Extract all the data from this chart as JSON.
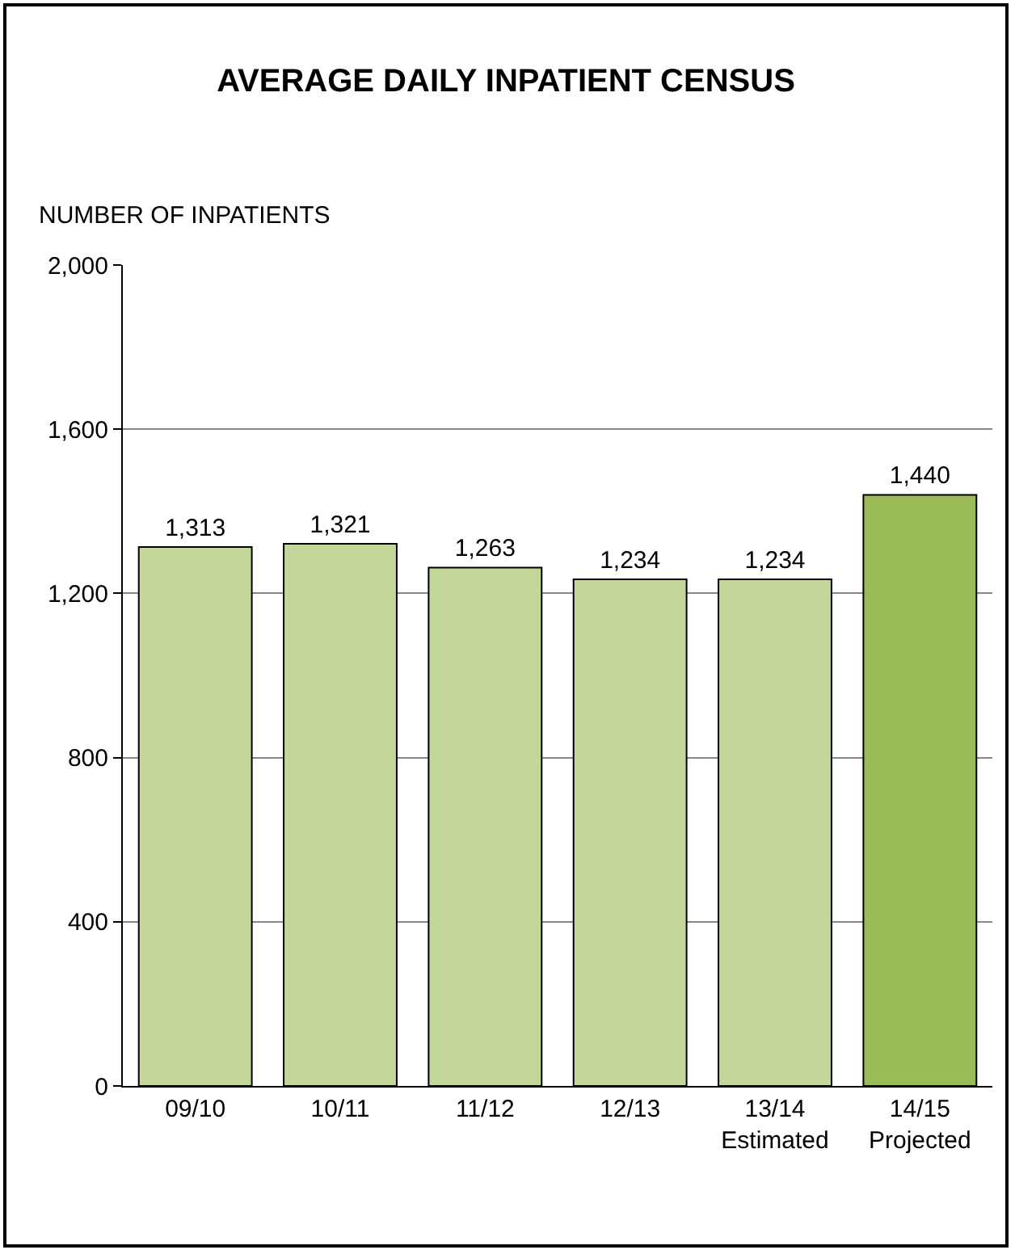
{
  "chart_data": {
    "type": "bar",
    "title": "AVERAGE DAILY INPATIENT CENSUS",
    "ylabel": "NUMBER OF INPATIENTS",
    "categories": [
      "09/10",
      "10/11",
      "11/12",
      "12/13",
      "13/14\nEstimated",
      "14/15\nProjected"
    ],
    "values": [
      1313,
      1321,
      1263,
      1234,
      1234,
      1440
    ],
    "colors": [
      "#c4d79b",
      "#c4d79b",
      "#c4d79b",
      "#c4d79b",
      "#c4d79b",
      "#9bbb59"
    ],
    "ylim": [
      0,
      2000
    ],
    "yticks": [
      {
        "value": 0,
        "label": "0"
      },
      {
        "value": 400,
        "label": "400"
      },
      {
        "value": 800,
        "label": "800"
      },
      {
        "value": 1200,
        "label": "1,200"
      },
      {
        "value": 1600,
        "label": "1,600"
      },
      {
        "value": 2000,
        "label": "2,000"
      }
    ],
    "value_labels": [
      "1,313",
      "1,321",
      "1,263",
      "1,234",
      "1,234",
      "1,440"
    ],
    "grid": "y"
  }
}
